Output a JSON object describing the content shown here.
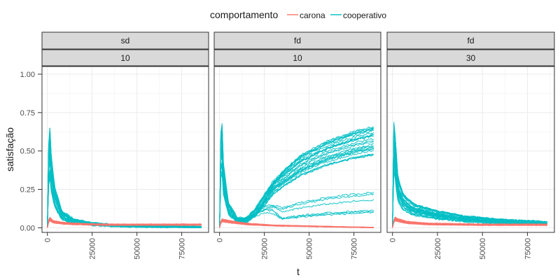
{
  "chart_data": {
    "type": "line",
    "xlabel": "t",
    "ylabel": "satisfação",
    "legend": {
      "title": "comportamento",
      "placement": "top",
      "entries": [
        {
          "name": "carona",
          "color": "#f8766d"
        },
        {
          "name": "cooperativo",
          "color": "#00bfc4"
        }
      ]
    },
    "grid": true,
    "xlim": [
      -3000,
      90000
    ],
    "ylim": [
      -0.03,
      1.05
    ],
    "x_ticks": [
      0,
      25000,
      50000,
      75000
    ],
    "y_ticks": [
      0.0,
      0.25,
      0.5,
      0.75,
      1.0
    ],
    "x_tick_labels": [
      "0",
      "25000",
      "50000",
      "75000"
    ],
    "y_tick_labels": [
      "0.00",
      "0.25",
      "0.50",
      "0.75",
      "1.00"
    ],
    "panels": [
      {
        "strip_top": "sd",
        "strip_bottom": "10",
        "series": [
          {
            "name": "cooperativo",
            "color": "#00bfc4",
            "count": 30,
            "description": "spike to ~0.65 (max ~0.9) right after t=0, quick decay to ~0.05 by t=5000, settling to ~0.0-0.03 for t>25000"
          },
          {
            "name": "carona",
            "color": "#f8766d",
            "count": 30,
            "description": "small bump to ~0.07 near t=0, flat at ~0.02 after"
          }
        ],
        "sample_lines": {
          "cooperativo": {
            "x": [
              0,
              1000,
              2000,
              4000,
              8000,
              15000,
              25000,
              40000,
              60000,
              86000
            ],
            "y": [
              0.0,
              0.7,
              0.45,
              0.25,
              0.1,
              0.05,
              0.03,
              0.015,
              0.01,
              0.005
            ]
          },
          "carona": {
            "x": [
              0,
              1000,
              3000,
              8000,
              15000,
              30000,
              60000,
              86000
            ],
            "y": [
              0.0,
              0.06,
              0.04,
              0.03,
              0.025,
              0.02,
              0.02,
              0.02
            ]
          }
        }
      },
      {
        "strip_top": "fd",
        "strip_bottom": "10",
        "series": [
          {
            "name": "cooperativo",
            "color": "#00bfc4",
            "count": 30,
            "description": "spike near t=0 (max ~0.9), dip to ~0.05-0.1 around t=10000-15000, then rises; most reach ~0.5-0.66 by t=86000, a few stay ~0.1-0.3"
          },
          {
            "name": "carona",
            "color": "#f8766d",
            "count": 30,
            "description": "~0.05 early, slowly declining to ~0.0 by t=86000"
          }
        ],
        "sample_lines": {
          "cooperativo": {
            "x": [
              0,
              1000,
              2000,
              5000,
              10000,
              15000,
              20000,
              30000,
              45000,
              60000,
              75000,
              86000
            ],
            "y": [
              0.0,
              0.8,
              0.4,
              0.15,
              0.06,
              0.06,
              0.12,
              0.3,
              0.45,
              0.54,
              0.6,
              0.63
            ]
          },
          "carona": {
            "x": [
              0,
              1000,
              5000,
              15000,
              30000,
              50000,
              70000,
              86000
            ],
            "y": [
              0.0,
              0.05,
              0.04,
              0.025,
              0.015,
              0.01,
              0.005,
              0.002
            ]
          }
        }
      },
      {
        "strip_top": "fd",
        "strip_bottom": "30",
        "series": [
          {
            "name": "cooperativo",
            "color": "#00bfc4",
            "count": 30,
            "description": "jump to ~0.3-0.8 at t=0, decay to ~0.1-0.15 by t=25000, gradually to ~0.02-0.07 by t=86000"
          },
          {
            "name": "carona",
            "color": "#f8766d",
            "count": 30,
            "description": "~0.05-0.07 early, down to ~0.02 after"
          }
        ],
        "sample_lines": {
          "cooperativo": {
            "x": [
              0,
              500,
              1500,
              3000,
              6000,
              12000,
              25000,
              40000,
              60000,
              86000
            ],
            "y": [
              0.0,
              0.65,
              0.55,
              0.3,
              0.2,
              0.14,
              0.1,
              0.07,
              0.05,
              0.035
            ]
          },
          "carona": {
            "x": [
              0,
              1000,
              3000,
              8000,
              20000,
              50000,
              86000
            ],
            "y": [
              0.0,
              0.06,
              0.05,
              0.035,
              0.025,
              0.02,
              0.02
            ]
          }
        }
      }
    ]
  }
}
